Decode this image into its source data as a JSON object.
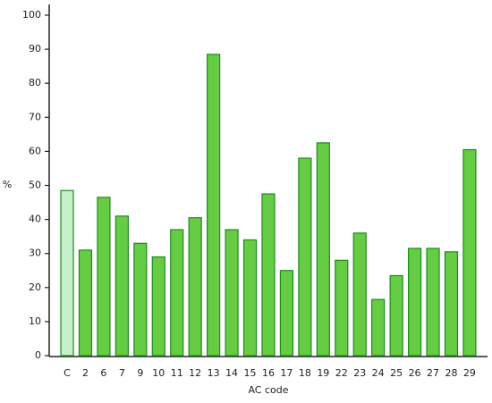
{
  "chart_data": {
    "type": "bar",
    "categories": [
      "C",
      "2",
      "6",
      "7",
      "9",
      "10",
      "11",
      "12",
      "13",
      "14",
      "15",
      "16",
      "17",
      "18",
      "19",
      "22",
      "23",
      "24",
      "25",
      "26",
      "27",
      "28",
      "29"
    ],
    "values": [
      48.5,
      31,
      46.5,
      41,
      33,
      29,
      37,
      40.5,
      88.5,
      37,
      34,
      47.5,
      25,
      58,
      62.5,
      28,
      36,
      16.5,
      23.5,
      31.5,
      31.5,
      30.5,
      60.5
    ],
    "colors": [
      "#c6efcc",
      "#66cc44",
      "#66cc44",
      "#66cc44",
      "#66cc44",
      "#66cc44",
      "#66cc44",
      "#66cc44",
      "#66cc44",
      "#66cc44",
      "#66cc44",
      "#66cc44",
      "#66cc44",
      "#66cc44",
      "#66cc44",
      "#66cc44",
      "#66cc44",
      "#66cc44",
      "#66cc44",
      "#66cc44",
      "#66cc44",
      "#66cc44",
      "#66cc44"
    ],
    "edge_color": "#1e8a1e",
    "xlabel": "AC code",
    "ylabel": "%",
    "ylim": [
      0,
      100
    ],
    "yticks": [
      0,
      10,
      20,
      30,
      40,
      50,
      60,
      70,
      80,
      90,
      100
    ]
  }
}
